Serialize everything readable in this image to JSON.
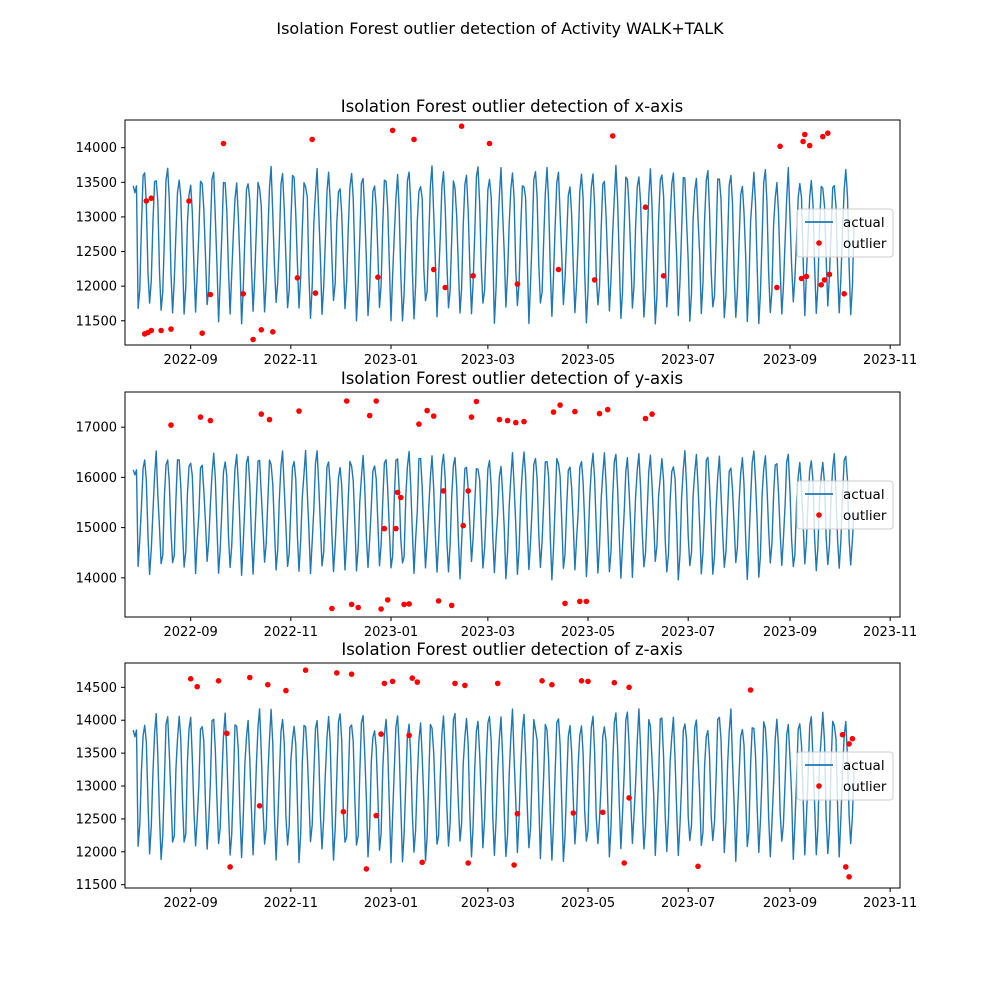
{
  "suptitle": "Isolation Forest outlier detection of Activity WALK+TALK",
  "colors": {
    "actual": "#1f77b4",
    "outlier": "#ff0000",
    "axes": "#000000",
    "background": "#ffffff"
  },
  "chart_data": [
    {
      "type": "line",
      "title": "Isolation Forest outlier detection of x-axis",
      "xlabel": "",
      "ylabel": "",
      "x_range": [
        "2022-07-23",
        "2023-11-07"
      ],
      "ylim": [
        11150,
        14400
      ],
      "x_ticks": [
        "2022-09",
        "2022-11",
        "2023-01",
        "2023-03",
        "2023-05",
        "2023-07",
        "2023-09",
        "2023-11"
      ],
      "y_ticks": [
        11500,
        12000,
        12500,
        13000,
        13500,
        14000
      ],
      "legend": {
        "position": "center-right",
        "entries": [
          "actual",
          "outlier"
        ]
      },
      "grid": false,
      "series": [
        {
          "name": "actual",
          "type": "line",
          "x_start": "2022-07-28",
          "x_end": "2023-10-10",
          "typical_high": 13600,
          "typical_low": 11650,
          "center": 12600,
          "max": 14310,
          "min": 11230
        },
        {
          "name": "outlier",
          "type": "scatter",
          "points": [
            [
              "2022-08-04",
              11310
            ],
            [
              "2022-08-06",
              11330
            ],
            [
              "2022-08-08",
              11360
            ],
            [
              "2022-08-05",
              13230
            ],
            [
              "2022-08-08",
              13270
            ],
            [
              "2022-08-14",
              11360
            ],
            [
              "2022-08-20",
              11380
            ],
            [
              "2022-08-31",
              13230
            ],
            [
              "2022-09-08",
              11320
            ],
            [
              "2022-09-13",
              11880
            ],
            [
              "2022-09-21",
              14060
            ],
            [
              "2022-10-03",
              11890
            ],
            [
              "2022-10-09",
              11230
            ],
            [
              "2022-10-14",
              11370
            ],
            [
              "2022-10-21",
              11340
            ],
            [
              "2022-11-05",
              12120
            ],
            [
              "2022-11-14",
              14120
            ],
            [
              "2022-11-16",
              11900
            ],
            [
              "2022-12-24",
              12130
            ],
            [
              "2023-01-02",
              14250
            ],
            [
              "2023-01-15",
              14120
            ],
            [
              "2023-01-27",
              12240
            ],
            [
              "2023-02-03",
              11980
            ],
            [
              "2023-02-13",
              14310
            ],
            [
              "2023-02-20",
              12150
            ],
            [
              "2023-03-02",
              14060
            ],
            [
              "2023-03-19",
              12030
            ],
            [
              "2023-04-13",
              12240
            ],
            [
              "2023-05-05",
              12090
            ],
            [
              "2023-05-16",
              14170
            ],
            [
              "2023-06-05",
              13140
            ],
            [
              "2023-06-16",
              12150
            ],
            [
              "2023-08-24",
              11980
            ],
            [
              "2023-08-26",
              14020
            ],
            [
              "2023-09-08",
              12110
            ],
            [
              "2023-09-09",
              14090
            ],
            [
              "2023-09-10",
              14190
            ],
            [
              "2023-09-11",
              12140
            ],
            [
              "2023-09-13",
              14030
            ],
            [
              "2023-09-20",
              12020
            ],
            [
              "2023-09-21",
              14160
            ],
            [
              "2023-09-22",
              12090
            ],
            [
              "2023-09-24",
              14210
            ],
            [
              "2023-09-25",
              12170
            ],
            [
              "2023-10-04",
              11890
            ]
          ]
        }
      ]
    },
    {
      "type": "line",
      "title": "Isolation Forest outlier detection of y-axis",
      "xlabel": "",
      "ylabel": "",
      "x_range": [
        "2022-07-23",
        "2023-11-07"
      ],
      "ylim": [
        13220,
        17700
      ],
      "x_ticks": [
        "2022-09",
        "2022-11",
        "2023-01",
        "2023-03",
        "2023-05",
        "2023-07",
        "2023-09",
        "2023-11"
      ],
      "y_ticks": [
        14000,
        15000,
        16000,
        17000
      ],
      "legend": {
        "position": "center-right",
        "entries": [
          "actual",
          "outlier"
        ]
      },
      "grid": false,
      "series": [
        {
          "name": "actual",
          "type": "line",
          "x_start": "2022-07-28",
          "x_end": "2023-10-10",
          "typical_high": 16300,
          "typical_low": 14100,
          "center": 15250,
          "max": 17520,
          "min": 13380
        },
        {
          "name": "outlier",
          "type": "scatter",
          "points": [
            [
              "2022-08-20",
              17040
            ],
            [
              "2022-09-07",
              17200
            ],
            [
              "2022-09-13",
              17130
            ],
            [
              "2022-10-14",
              17260
            ],
            [
              "2022-10-19",
              17150
            ],
            [
              "2022-11-06",
              17320
            ],
            [
              "2022-11-26",
              13390
            ],
            [
              "2022-12-05",
              17520
            ],
            [
              "2022-12-08",
              13470
            ],
            [
              "2022-12-12",
              13410
            ],
            [
              "2022-12-19",
              17230
            ],
            [
              "2022-12-23",
              17520
            ],
            [
              "2022-12-26",
              13380
            ],
            [
              "2022-12-30",
              13560
            ],
            [
              "2022-12-28",
              14980
            ],
            [
              "2023-01-04",
              14980
            ],
            [
              "2023-01-05",
              15700
            ],
            [
              "2023-01-07",
              15600
            ],
            [
              "2023-01-09",
              13470
            ],
            [
              "2023-01-12",
              13480
            ],
            [
              "2023-01-18",
              17060
            ],
            [
              "2023-01-23",
              17330
            ],
            [
              "2023-01-27",
              17220
            ],
            [
              "2023-01-30",
              13540
            ],
            [
              "2023-02-02",
              15730
            ],
            [
              "2023-02-07",
              13450
            ],
            [
              "2023-02-14",
              15040
            ],
            [
              "2023-02-17",
              15730
            ],
            [
              "2023-02-19",
              17200
            ],
            [
              "2023-02-22",
              17510
            ],
            [
              "2023-03-08",
              17150
            ],
            [
              "2023-03-13",
              17130
            ],
            [
              "2023-03-18",
              17090
            ],
            [
              "2023-03-23",
              17110
            ],
            [
              "2023-04-10",
              17300
            ],
            [
              "2023-04-14",
              17440
            ],
            [
              "2023-04-17",
              13490
            ],
            [
              "2023-04-23",
              17310
            ],
            [
              "2023-04-26",
              13530
            ],
            [
              "2023-04-30",
              13530
            ],
            [
              "2023-05-08",
              17270
            ],
            [
              "2023-05-13",
              17350
            ],
            [
              "2023-06-05",
              17170
            ],
            [
              "2023-06-09",
              17260
            ]
          ]
        }
      ]
    },
    {
      "type": "line",
      "title": "Isolation Forest outlier detection of z-axis",
      "xlabel": "",
      "ylabel": "",
      "x_range": [
        "2022-07-23",
        "2023-11-07"
      ],
      "ylim": [
        11450,
        14870
      ],
      "x_ticks": [
        "2022-09",
        "2022-11",
        "2023-01",
        "2023-03",
        "2023-05",
        "2023-07",
        "2023-09",
        "2023-11"
      ],
      "y_ticks": [
        11500,
        12000,
        12500,
        13000,
        13500,
        14000,
        14500
      ],
      "legend": {
        "position": "center-right",
        "entries": [
          "actual",
          "outlier"
        ]
      },
      "grid": false,
      "series": [
        {
          "name": "actual",
          "type": "line",
          "x_start": "2022-07-28",
          "x_end": "2023-10-10",
          "typical_high": 14000,
          "typical_low": 12000,
          "center": 13000,
          "max": 14760,
          "min": 11610
        },
        {
          "name": "outlier",
          "type": "scatter",
          "points": [
            [
              "2022-09-01",
              14630
            ],
            [
              "2022-09-05",
              14510
            ],
            [
              "2022-09-18",
              14600
            ],
            [
              "2022-09-23",
              13800
            ],
            [
              "2022-09-25",
              11770
            ],
            [
              "2022-10-07",
              14650
            ],
            [
              "2022-10-13",
              12700
            ],
            [
              "2022-10-18",
              14540
            ],
            [
              "2022-10-29",
              14450
            ],
            [
              "2022-11-10",
              14760
            ],
            [
              "2022-11-29",
              14720
            ],
            [
              "2022-12-03",
              12610
            ],
            [
              "2022-12-08",
              14700
            ],
            [
              "2022-12-17",
              11740
            ],
            [
              "2022-12-23",
              12550
            ],
            [
              "2022-12-26",
              13790
            ],
            [
              "2022-12-28",
              14560
            ],
            [
              "2023-01-02",
              14590
            ],
            [
              "2023-01-12",
              13770
            ],
            [
              "2023-01-14",
              14640
            ],
            [
              "2023-01-17",
              14580
            ],
            [
              "2023-01-20",
              11840
            ],
            [
              "2023-02-09",
              14560
            ],
            [
              "2023-02-15",
              14530
            ],
            [
              "2023-02-17",
              11830
            ],
            [
              "2023-03-07",
              14560
            ],
            [
              "2023-03-17",
              11800
            ],
            [
              "2023-03-19",
              12580
            ],
            [
              "2023-04-03",
              14600
            ],
            [
              "2023-04-09",
              14540
            ],
            [
              "2023-04-22",
              12590
            ],
            [
              "2023-04-27",
              14600
            ],
            [
              "2023-05-01",
              14590
            ],
            [
              "2023-05-10",
              12600
            ],
            [
              "2023-05-17",
              14570
            ],
            [
              "2023-05-23",
              11830
            ],
            [
              "2023-05-26",
              14500
            ],
            [
              "2023-05-26",
              12820
            ],
            [
              "2023-07-07",
              11780
            ],
            [
              "2023-08-08",
              14460
            ],
            [
              "2023-10-03",
              13780
            ],
            [
              "2023-10-05",
              11770
            ],
            [
              "2023-10-07",
              13640
            ],
            [
              "2023-10-07",
              11620
            ],
            [
              "2023-10-09",
              13720
            ]
          ]
        }
      ]
    }
  ]
}
